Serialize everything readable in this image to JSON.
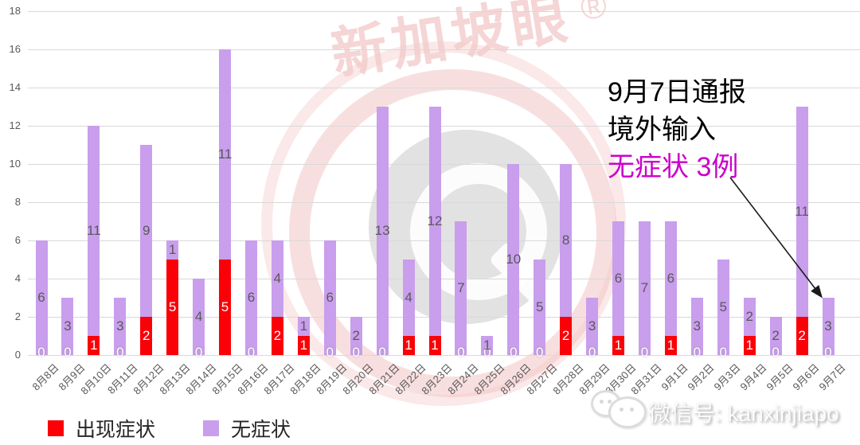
{
  "chart_data": {
    "type": "bar",
    "stacked": true,
    "categories": [
      "8月8日",
      "8月9日",
      "8月10日",
      "8月11日",
      "8月12日",
      "8月13日",
      "8月14日",
      "8月15日",
      "8月16日",
      "8月17日",
      "8月18日",
      "8月19日",
      "8月20日",
      "8月21日",
      "8月22日",
      "8月23日",
      "8月24日",
      "8月25日",
      "8月26日",
      "8月27日",
      "8月28日",
      "8月29日",
      "8月30日",
      "8月31日",
      "9月1日",
      "9月2日",
      "9月3日",
      "9月4日",
      "9月5日",
      "9月6日",
      "9月7日"
    ],
    "series": [
      {
        "name": "出现症状",
        "color": "#fb0007",
        "values": [
          0,
          0,
          1,
          0,
          2,
          5,
          0,
          5,
          0,
          2,
          1,
          0,
          0,
          0,
          1,
          1,
          0,
          0,
          0,
          0,
          2,
          0,
          1,
          0,
          1,
          0,
          0,
          1,
          0,
          2,
          0
        ]
      },
      {
        "name": "无症状",
        "color": "#c99eec",
        "values": [
          6,
          3,
          11,
          3,
          9,
          1,
          4,
          11,
          6,
          4,
          1,
          6,
          2,
          13,
          4,
          12,
          7,
          1,
          10,
          5,
          8,
          3,
          6,
          7,
          6,
          3,
          5,
          2,
          2,
          11,
          3
        ]
      }
    ],
    "title": "",
    "xlabel": "",
    "ylabel": "",
    "ylim": [
      0,
      18
    ],
    "yticks": [
      0,
      2,
      4,
      6,
      8,
      10,
      12,
      14,
      16,
      18
    ],
    "grid": "horizontal",
    "legend_position": "bottom-left",
    "value_labels": "every segment labeled; zero symptomatic values shown as white 0 on baseline"
  },
  "annotation": {
    "lines": [
      "9月7日通报",
      "境外输入",
      "无症状 3例"
    ],
    "highlight_color": "#cc00cc",
    "arrow_target": "9月7日 bar"
  },
  "legend": {
    "items": [
      {
        "label": "出现症状",
        "color": "#fb0007"
      },
      {
        "label": "无症状",
        "color": "#c99eec"
      }
    ]
  },
  "watermark": {
    "brand": "新加坡眼",
    "registered": "®",
    "wechat_label": "微信号: kanxinjiapo"
  },
  "colors": {
    "grid": "#d9d9d9",
    "axis_text": "#595959",
    "value_label_gray": "#595959",
    "value_label_white": "#ffffff",
    "annotation_black": "#000000",
    "annotation_magenta": "#cc00cc",
    "watermark_pink": "#f2cbcb"
  }
}
